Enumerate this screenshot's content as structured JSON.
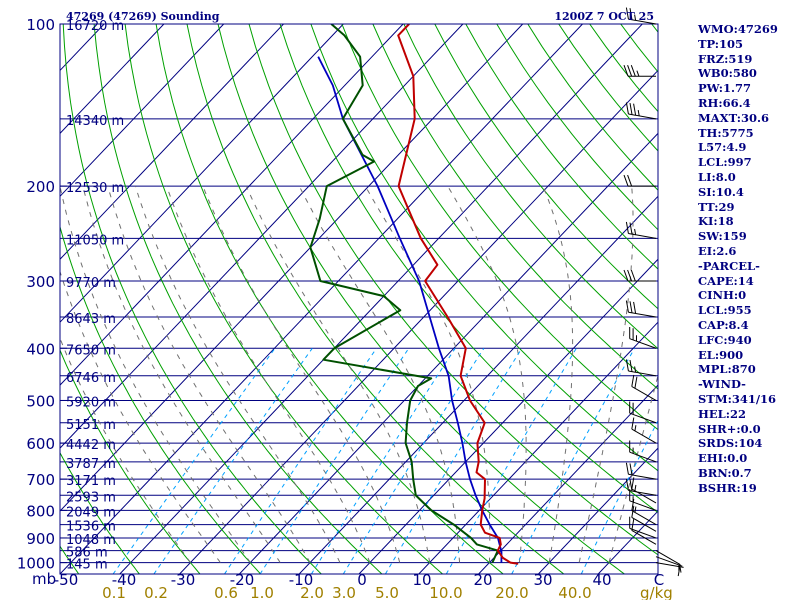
{
  "header": {
    "station_label": "47269 (47269) Sounding",
    "time_label": "1200Z  7 OCT 25"
  },
  "indices": [
    "WMO:47269",
    "TP:105",
    "FRZ:519",
    "WB0:580",
    "PW:1.77",
    "RH:66.4",
    "MAXT:30.6",
    "TH:5775",
    "L57:4.9",
    "LCL:997",
    "LI:8.0",
    "SI:10.4",
    "TT:29",
    "KI:18",
    "SW:159",
    "EI:2.6",
    "-PARCEL-",
    "CAPE:14",
    "CINH:0",
    "LCL:955",
    "CAP:8.4",
    "LFC:940",
    "EL:900",
    "MPL:870",
    "-WIND-",
    "STM:341/16",
    "HEL:22",
    "SHR+:0.0",
    "SRDS:104",
    "EHI:0.0",
    "BRN:0.7",
    "BSHR:19"
  ],
  "colors": {
    "isobar": "#000080",
    "isotherm": "#000080",
    "dry_adiabat": "#00a000",
    "moist_adiabat": "#707070",
    "mixing_ratio": "#00a0ff",
    "temperature": "#c00000",
    "dewpoint": "#005000",
    "parcel": "#0000c0",
    "label": "#000080",
    "mixing_label": "#a08000",
    "wind_barb": "#000000"
  },
  "chart_data": {
    "type": "skew-t",
    "title": "47269 (47269) Sounding  1200Z 7 OCT 25",
    "pressure_axis_label": "mb",
    "temperature_axis_label": "C",
    "mixing_axis_label": "g/kg",
    "pressure_ticks": [
      "100",
      "200",
      "300",
      "400",
      "500",
      "600",
      "700",
      "800",
      "900",
      "1000"
    ],
    "temperature_ticks": [
      "-50",
      "-40",
      "-30",
      "-20",
      "-10",
      "0",
      "10",
      "20",
      "30",
      "40"
    ],
    "mixing_ticks": [
      "0.1",
      "0.2",
      "0.6",
      "1.0",
      "2.0",
      "3.0",
      "5.0",
      "10.0",
      "20.0",
      "40.0"
    ],
    "heights": [
      {
        "p": 100,
        "label": "16720 m"
      },
      {
        "p": 150,
        "label": "14340 m"
      },
      {
        "p": 200,
        "label": "12530 m"
      },
      {
        "p": 250,
        "label": "11050 m"
      },
      {
        "p": 300,
        "label": "9770 m"
      },
      {
        "p": 350,
        "label": "8643 m"
      },
      {
        "p": 400,
        "label": "7650 m"
      },
      {
        "p": 450,
        "label": "6746 m"
      },
      {
        "p": 500,
        "label": "5920 m"
      },
      {
        "p": 550,
        "label": "5151 m"
      },
      {
        "p": 600,
        "label": "4442 m"
      },
      {
        "p": 650,
        "label": "3787 m"
      },
      {
        "p": 700,
        "label": "3171 m"
      },
      {
        "p": 750,
        "label": "2593 m"
      },
      {
        "p": 800,
        "label": "2049 m"
      },
      {
        "p": 850,
        "label": "1536 m"
      },
      {
        "p": 900,
        "label": "1048 m"
      },
      {
        "p": 950,
        "label": "586 m"
      },
      {
        "p": 1000,
        "label": "145 m"
      }
    ],
    "temperature_profile": [
      {
        "p": 1005,
        "t": 25.0
      },
      {
        "p": 1000,
        "t": 23.5
      },
      {
        "p": 980,
        "t": 21.5
      },
      {
        "p": 950,
        "t": 19.5
      },
      {
        "p": 925,
        "t": 19.0
      },
      {
        "p": 900,
        "t": 17.8
      },
      {
        "p": 880,
        "t": 14.5
      },
      {
        "p": 850,
        "t": 12.5
      },
      {
        "p": 800,
        "t": 10.5
      },
      {
        "p": 760,
        "t": 9.0
      },
      {
        "p": 700,
        "t": 6.0
      },
      {
        "p": 680,
        "t": 3.5
      },
      {
        "p": 650,
        "t": 2.2
      },
      {
        "p": 600,
        "t": -1.0
      },
      {
        "p": 550,
        "t": -3.0
      },
      {
        "p": 500,
        "t": -9.0
      },
      {
        "p": 450,
        "t": -14.5
      },
      {
        "p": 400,
        "t": -18.0
      },
      {
        "p": 350,
        "t": -26.0
      },
      {
        "p": 300,
        "t": -35.5
      },
      {
        "p": 280,
        "t": -36.0
      },
      {
        "p": 250,
        "t": -43.0
      },
      {
        "p": 200,
        "t": -55.0
      },
      {
        "p": 150,
        "t": -63.0
      },
      {
        "p": 125,
        "t": -70.0
      },
      {
        "p": 105,
        "t": -79.0
      },
      {
        "p": 100,
        "t": -79.0
      }
    ],
    "dewpoint_profile": [
      {
        "p": 1000,
        "t": 20.5
      },
      {
        "p": 950,
        "t": 19.5
      },
      {
        "p": 925,
        "t": 15.0
      },
      {
        "p": 900,
        "t": 13.0
      },
      {
        "p": 850,
        "t": 8.0
      },
      {
        "p": 800,
        "t": 2.0
      },
      {
        "p": 750,
        "t": -3.0
      },
      {
        "p": 700,
        "t": -6.0
      },
      {
        "p": 650,
        "t": -9.0
      },
      {
        "p": 600,
        "t": -13.0
      },
      {
        "p": 550,
        "t": -16.0
      },
      {
        "p": 500,
        "t": -19.0
      },
      {
        "p": 470,
        "t": -20.0
      },
      {
        "p": 455,
        "t": -19.0
      },
      {
        "p": 420,
        "t": -40.0
      },
      {
        "p": 400,
        "t": -40.0
      },
      {
        "p": 340,
        "t": -35.0
      },
      {
        "p": 320,
        "t": -40.0
      },
      {
        "p": 300,
        "t": -53.0
      },
      {
        "p": 260,
        "t": -60.0
      },
      {
        "p": 230,
        "t": -63.0
      },
      {
        "p": 200,
        "t": -67.0
      },
      {
        "p": 180,
        "t": -63.0
      },
      {
        "p": 175,
        "t": -66.0
      },
      {
        "p": 150,
        "t": -75.0
      },
      {
        "p": 130,
        "t": -77.0
      },
      {
        "p": 115,
        "t": -82.0
      },
      {
        "p": 105,
        "t": -88.0
      },
      {
        "p": 100,
        "t": -92.0
      }
    ],
    "parcel_profile": [
      {
        "p": 1000,
        "t": 22.0
      },
      {
        "p": 955,
        "t": 20.3
      },
      {
        "p": 900,
        "t": 17.5
      },
      {
        "p": 850,
        "t": 14.0
      },
      {
        "p": 800,
        "t": 10.5
      },
      {
        "p": 750,
        "t": 7.0
      },
      {
        "p": 700,
        "t": 3.5
      },
      {
        "p": 650,
        "t": 0.0
      },
      {
        "p": 600,
        "t": -3.5
      },
      {
        "p": 550,
        "t": -7.5
      },
      {
        "p": 500,
        "t": -12.0
      },
      {
        "p": 450,
        "t": -16.5
      },
      {
        "p": 400,
        "t": -22.5
      },
      {
        "p": 350,
        "t": -29.0
      },
      {
        "p": 300,
        "t": -36.5
      },
      {
        "p": 250,
        "t": -46.5
      },
      {
        "p": 200,
        "t": -58.5
      },
      {
        "p": 150,
        "t": -75.0
      },
      {
        "p": 130,
        "t": -82.0
      },
      {
        "p": 115,
        "t": -89.0
      }
    ],
    "winds": [
      {
        "p": 1000,
        "dir": 100,
        "spd": 5
      },
      {
        "p": 975,
        "dir": 110,
        "spd": 5
      },
      {
        "p": 950,
        "dir": 120,
        "spd": 10
      },
      {
        "p": 925,
        "dir": 300,
        "spd": 10
      },
      {
        "p": 900,
        "dir": 290,
        "spd": 10
      },
      {
        "p": 875,
        "dir": 300,
        "spd": 10
      },
      {
        "p": 850,
        "dir": 300,
        "spd": 15
      },
      {
        "p": 800,
        "dir": 290,
        "spd": 15
      },
      {
        "p": 775,
        "dir": 300,
        "spd": 15
      },
      {
        "p": 750,
        "dir": 280,
        "spd": 20
      },
      {
        "p": 700,
        "dir": 280,
        "spd": 20
      },
      {
        "p": 650,
        "dir": 290,
        "spd": 15
      },
      {
        "p": 600,
        "dir": 300,
        "spd": 15
      },
      {
        "p": 550,
        "dir": 290,
        "spd": 20
      },
      {
        "p": 500,
        "dir": 300,
        "spd": 20
      },
      {
        "p": 450,
        "dir": 280,
        "spd": 25
      },
      {
        "p": 400,
        "dir": 290,
        "spd": 25
      },
      {
        "p": 350,
        "dir": 280,
        "spd": 30
      },
      {
        "p": 300,
        "dir": 270,
        "spd": 30
      },
      {
        "p": 250,
        "dir": 280,
        "spd": 25
      },
      {
        "p": 200,
        "dir": 270,
        "spd": 20
      },
      {
        "p": 150,
        "dir": 280,
        "spd": 35
      },
      {
        "p": 125,
        "dir": 270,
        "spd": 35
      },
      {
        "p": 100,
        "dir": 280,
        "spd": 25
      }
    ]
  }
}
